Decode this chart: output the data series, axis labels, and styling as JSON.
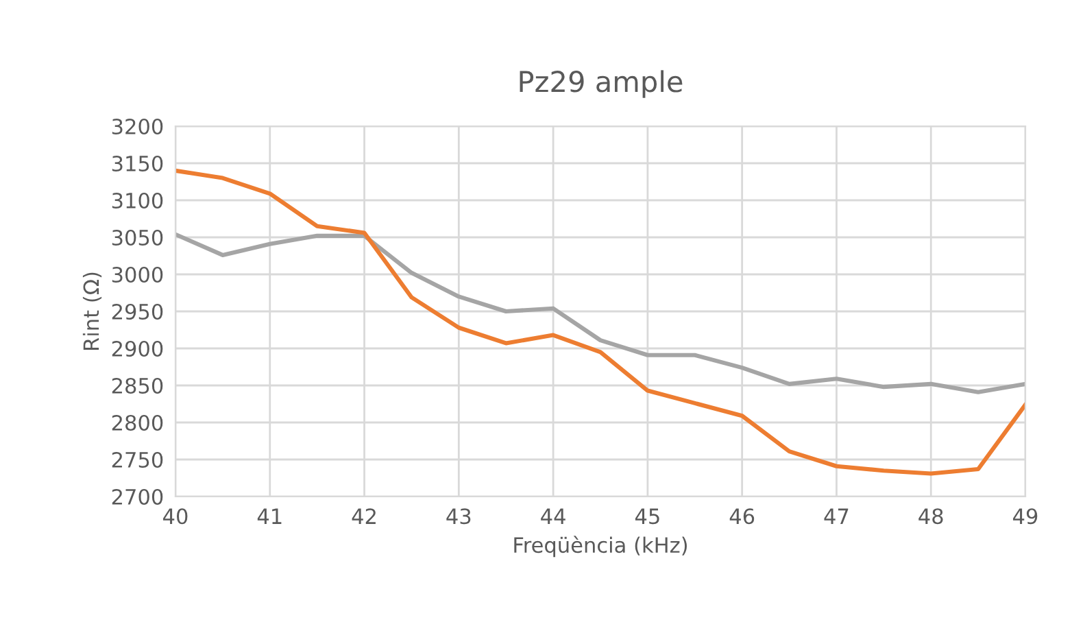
{
  "chart_data": {
    "type": "line",
    "title": "Pz29 ample",
    "xlabel": "Freqüència (kHz)",
    "ylabel": "Rint (Ω)",
    "x": [
      40,
      40.5,
      41,
      41.5,
      42,
      42.5,
      43,
      43.5,
      44,
      44.5,
      45,
      45.5,
      46,
      46.5,
      47,
      47.5,
      48,
      48.5,
      49
    ],
    "series": [
      {
        "color": "#a5a5a5",
        "values": [
          3054,
          3026,
          3041,
          3052,
          3052,
          3002,
          2970,
          2950,
          2954,
          2911,
          2891,
          2891,
          2874,
          2852,
          2859,
          2848,
          2852,
          2841,
          2852
        ]
      },
      {
        "color": "#ed7d31",
        "values": [
          3140,
          3130,
          3109,
          3065,
          3056,
          2969,
          2928,
          2907,
          2918,
          2895,
          2843,
          2826,
          2809,
          2761,
          2741,
          2735,
          2731,
          2737,
          2824
        ]
      }
    ],
    "xlim": [
      40,
      49
    ],
    "xticks": [
      40,
      41,
      42,
      43,
      44,
      45,
      46,
      47,
      48,
      49
    ],
    "ylim": [
      2700,
      3200
    ],
    "yticks": [
      2700,
      2750,
      2800,
      2850,
      2900,
      2950,
      3000,
      3050,
      3100,
      3150,
      3200
    ],
    "grid": true,
    "marker": "none",
    "line_style": "solid"
  }
}
